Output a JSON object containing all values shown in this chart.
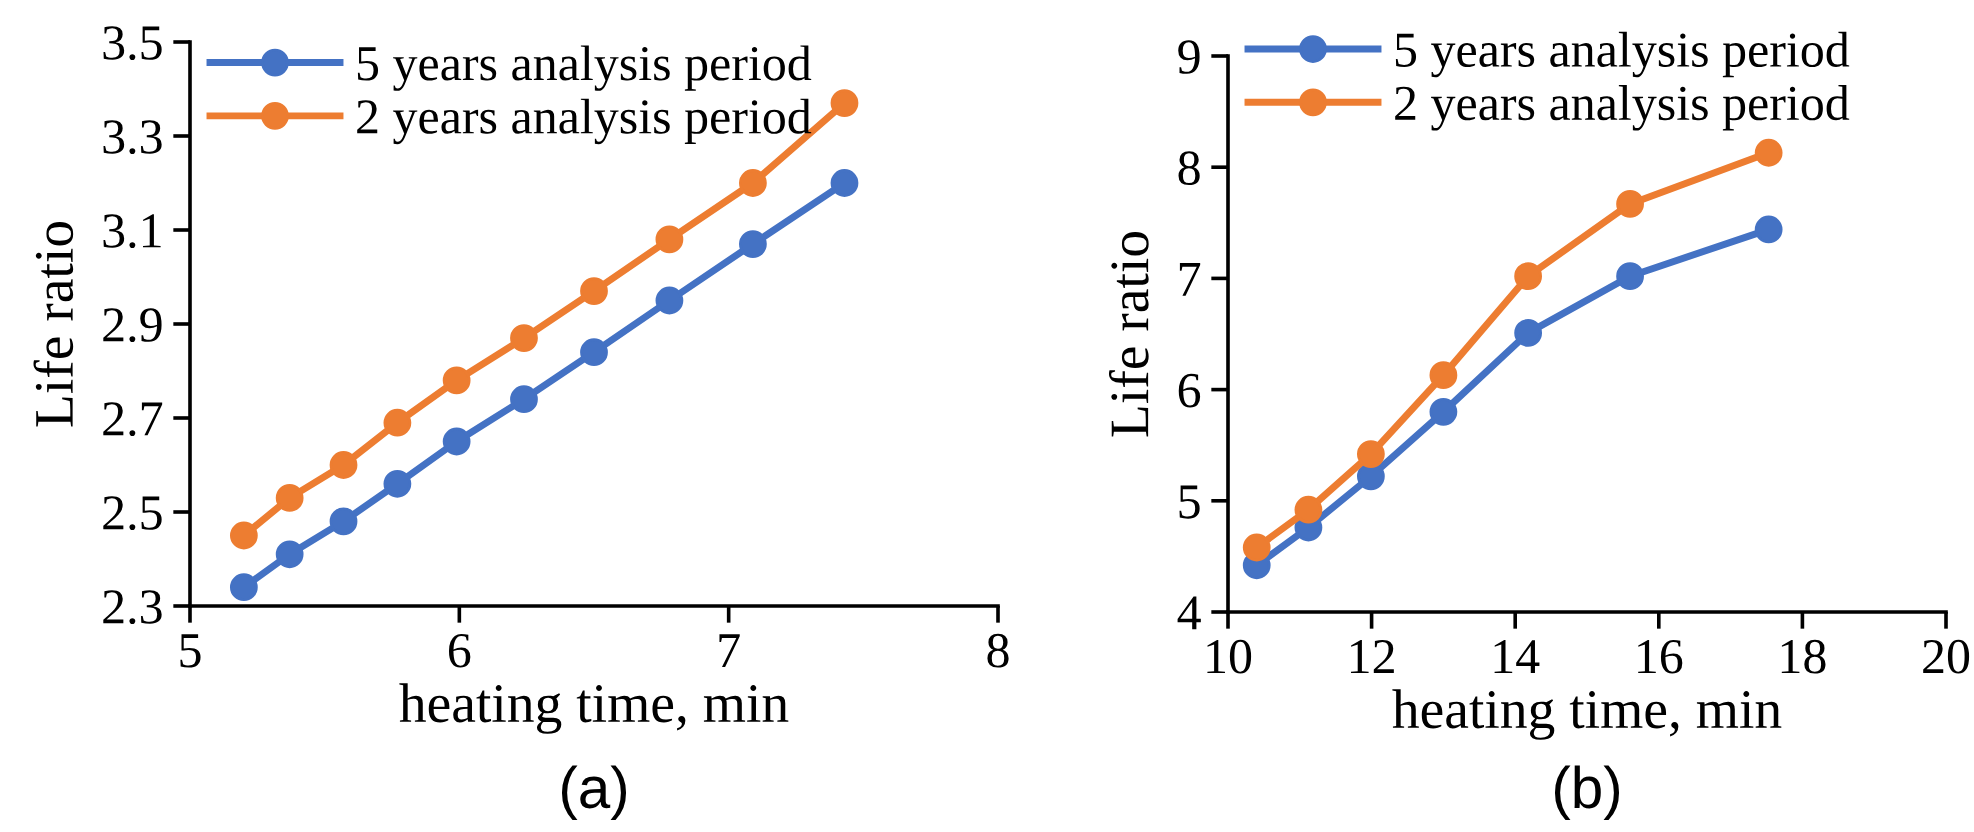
{
  "chart_data": [
    {
      "type": "line",
      "xlabel": "heating time, min",
      "ylabel": "Life ratio",
      "annotations": [
        "(a)"
      ],
      "xlim": [
        5,
        8
      ],
      "xticks": [
        5,
        6,
        7,
        8
      ],
      "ylim": [
        2.3,
        3.5
      ],
      "yticks": [
        2.3,
        2.5,
        2.7,
        2.9,
        3.1,
        3.3,
        3.5
      ],
      "grid": false,
      "legend": "top left",
      "marker": "circle",
      "line_style": "solid",
      "x": [
        5.2,
        5.37,
        5.57,
        5.77,
        5.99,
        6.24,
        6.5,
        6.78,
        7.09,
        7.43
      ],
      "series": [
        {
          "name": "5 years analysis period",
          "color": "#4472c4",
          "values": [
            2.34,
            2.41,
            2.48,
            2.56,
            2.65,
            2.74,
            2.84,
            2.95,
            3.07,
            3.2
          ]
        },
        {
          "name": "2 years analysis period",
          "color": "#ed7d31",
          "values": [
            2.45,
            2.53,
            2.6,
            2.69,
            2.78,
            2.87,
            2.97,
            3.08,
            3.2,
            3.37
          ]
        }
      ]
    },
    {
      "type": "line",
      "xlabel": "heating time, min",
      "ylabel": "Life ratio",
      "annotations": [
        "(b)"
      ],
      "xlim": [
        10,
        20
      ],
      "xticks": [
        10,
        12,
        14,
        16,
        18,
        20
      ],
      "ylim": [
        4,
        9
      ],
      "yticks": [
        4,
        5,
        6,
        7,
        8,
        9
      ],
      "grid": false,
      "legend": "top left",
      "marker": "circle",
      "line_style": "solid",
      "x": [
        10.4,
        11.12,
        11.99,
        13.0,
        14.18,
        15.6,
        17.53
      ],
      "series": [
        {
          "name": "5 years analysis period",
          "color": "#4472c4",
          "values": [
            4.42,
            4.76,
            5.22,
            5.8,
            6.51,
            7.02,
            7.44
          ]
        },
        {
          "name": "2 years analysis period",
          "color": "#ed7d31",
          "values": [
            4.58,
            4.92,
            5.42,
            6.13,
            7.02,
            7.67,
            8.13
          ]
        }
      ]
    }
  ]
}
